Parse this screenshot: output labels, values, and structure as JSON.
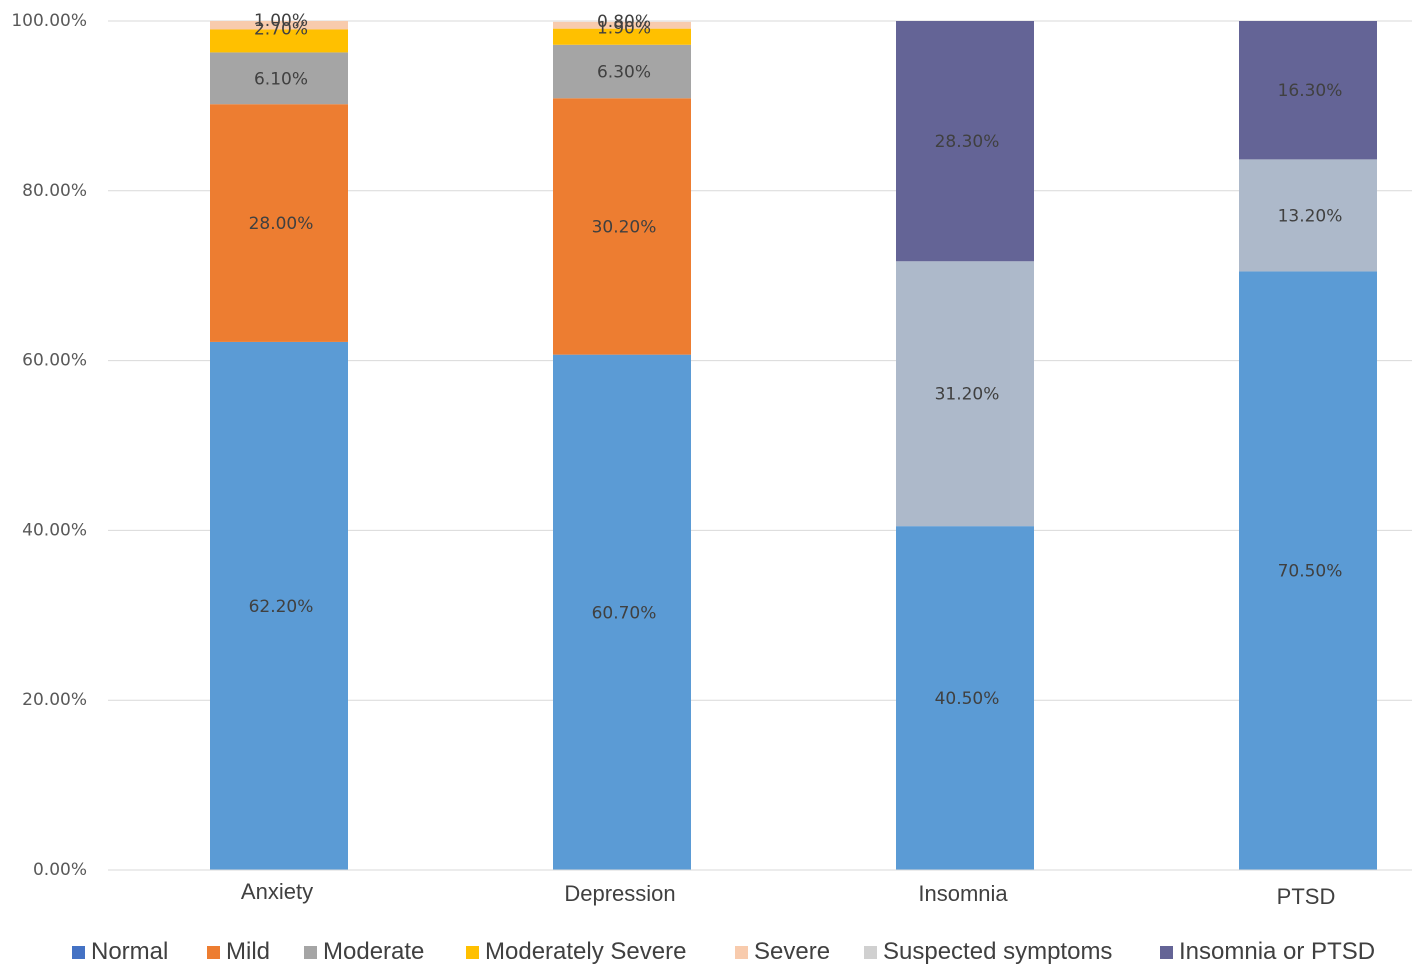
{
  "chart_data": {
    "type": "bar",
    "stacked": true,
    "categories": [
      "Anxiety",
      "Depression",
      "Insomnia",
      "PTSD"
    ],
    "ylim": [
      0,
      100
    ],
    "yticks": [
      "0.00%",
      "20.00%",
      "40.00%",
      "60.00%",
      "80.00%",
      "100.00%"
    ],
    "grid": true,
    "legend_position": "bottom",
    "series": [
      {
        "name": "Normal",
        "color": "#5b9bd5",
        "values": [
          62.2,
          60.7,
          40.5,
          70.5
        ],
        "labels": [
          "62.20%",
          "60.70%",
          "40.50%",
          "70.50%"
        ]
      },
      {
        "name": "Mild",
        "color": "#ed7d31",
        "values": [
          28.0,
          30.2,
          null,
          null
        ],
        "labels": [
          "28.00%",
          "30.20%",
          null,
          null
        ]
      },
      {
        "name": "Moderate",
        "color": "#a5a5a5",
        "values": [
          6.1,
          6.3,
          null,
          null
        ],
        "labels": [
          "6.10%",
          "6.30%",
          null,
          null
        ]
      },
      {
        "name": "Moderately Severe",
        "color": "#ffc000",
        "values": [
          2.7,
          1.9,
          null,
          null
        ],
        "labels": [
          "2.70%",
          "1.90%",
          null,
          null
        ]
      },
      {
        "name": "Severe",
        "color": "#f8cbad",
        "values": [
          1.0,
          0.8,
          null,
          null
        ],
        "labels": [
          "1.00%",
          "0.80%",
          null,
          null
        ]
      },
      {
        "name": "Suspected symptoms",
        "color": "#adb9ca",
        "values": [
          null,
          null,
          31.2,
          13.2
        ],
        "labels": [
          null,
          null,
          "31.20%",
          "13.20%"
        ]
      },
      {
        "name": "Insomnia or PTSD",
        "color": "#646496",
        "values": [
          null,
          null,
          28.3,
          16.3
        ],
        "labels": [
          null,
          null,
          "28.30%",
          "16.30%"
        ]
      }
    ],
    "legend_swatch_colors": [
      "#4472c4",
      "#ed7d31",
      "#a5a5a5",
      "#ffc000",
      "#f8cbad",
      "#d0d0d0",
      "#646496"
    ]
  }
}
